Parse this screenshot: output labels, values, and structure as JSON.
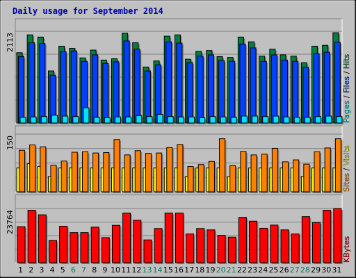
{
  "chart_data": {
    "type": "bar",
    "title": "Daily usage for September 2014",
    "categories": [
      "1",
      "2",
      "3",
      "4",
      "5",
      "6",
      "7",
      "8",
      "9",
      "10",
      "11",
      "12",
      "13",
      "14",
      "15",
      "16",
      "17",
      "18",
      "19",
      "20",
      "21",
      "22",
      "23",
      "24",
      "25",
      "26",
      "27",
      "28",
      "29",
      "30",
      "31"
    ],
    "weekend_days": [
      "6",
      "7",
      "13",
      "14",
      "20",
      "21",
      "27",
      "28"
    ],
    "panels": [
      {
        "id": "hits-files-pages",
        "ymax": 2113,
        "ymax_label": "2113",
        "legend": [
          "Pages",
          "Files",
          "Hits"
        ],
        "series": [
          {
            "name": "Hits",
            "color": "#008040",
            "values": [
              1620,
              2030,
              1980,
              1200,
              1770,
              1720,
              1500,
              1680,
              1450,
              1480,
              2070,
              1850,
              1290,
              1430,
              2000,
              2030,
              1470,
              1650,
              1670,
              1530,
              1510,
              1980,
              1870,
              1540,
              1700,
              1570,
              1540,
              1390,
              1770,
              1790,
              2080
            ]
          },
          {
            "name": "Files",
            "color": "#0040ff",
            "values": [
              1530,
              1850,
              1830,
              1100,
              1640,
              1660,
              1420,
              1570,
              1370,
              1410,
              1890,
              1700,
              1200,
              1340,
              1870,
              1840,
              1390,
              1540,
              1570,
              1440,
              1420,
              1820,
              1730,
              1420,
              1570,
              1450,
              1420,
              1280,
              1600,
              1630,
              1860
            ]
          },
          {
            "name": "Pages",
            "color": "#00e0ff",
            "values": [
              130,
              140,
              150,
              180,
              160,
              150,
              350,
              130,
              120,
              140,
              140,
              170,
              150,
              200,
              150,
              140,
              140,
              120,
              150,
              140,
              130,
              160,
              160,
              150,
              160,
              140,
              130,
              130,
              150,
              160,
              150
            ]
          }
        ]
      },
      {
        "id": "visits-sites",
        "ymax": 150,
        "ymax_label": "150",
        "legend": [
          "Sites",
          "Visits"
        ],
        "series": [
          {
            "name": "Visits",
            "color": "#ffff00",
            "values": [
              62,
              73,
              66,
              40,
              62,
              62,
              62,
              62,
              62,
              62,
              62,
              62,
              62,
              62,
              62,
              62,
              40,
              62,
              62,
              62,
              40,
              62,
              62,
              62,
              62,
              62,
              62,
              40,
              62,
              62,
              62
            ]
          },
          {
            "name": "Sites",
            "color": "#ff8000",
            "values": [
              108,
              122,
              117,
              69,
              80,
              103,
              104,
              101,
              102,
              136,
              96,
              107,
              100,
              101,
              115,
              123,
              66,
              71,
              79,
              138,
              68,
              105,
              96,
              98,
              113,
              78,
              83,
              72,
              104,
              114,
              138
            ]
          }
        ]
      },
      {
        "id": "kbytes",
        "ymax": 23764,
        "ymax_label": "23764",
        "legend": [
          "KBytes"
        ],
        "series": [
          {
            "name": "KBytes",
            "color": "#ff0000",
            "values": [
              15800,
              23000,
              21000,
              9800,
              16000,
              13200,
              13200,
              15600,
              11000,
              16400,
              21800,
              18600,
              10000,
              15000,
              21800,
              21800,
              12600,
              15000,
              14400,
              12000,
              11200,
              19900,
              18200,
              15100,
              16500,
              14400,
              12600,
              20200,
              17600,
              23000,
              23764
            ]
          }
        ]
      }
    ],
    "colors": {
      "background": "#c0c0c0",
      "frame_dark": "#808080",
      "frame_light": "#ffffff",
      "grid": "#808080",
      "weekday_tick": "#000000",
      "weekend_tick": "#00805c"
    }
  }
}
